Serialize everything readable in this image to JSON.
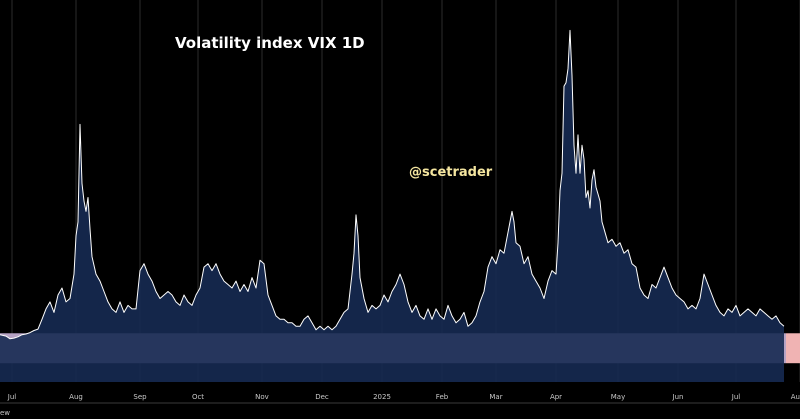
{
  "chart_data": {
    "type": "area",
    "title": "Volatility index VIX 1D",
    "watermark": "@scetrader",
    "corner_text": "ew",
    "ylim": [
      10,
      62
    ],
    "xlim": [
      0,
      393
    ],
    "grid": true,
    "colors": {
      "background": "#000000",
      "line": "#ffffff",
      "fill": "#162a52",
      "band": "#b6a3c4",
      "band_edge": "#f0b3b3",
      "grid": "#2c2c2c"
    },
    "band": {
      "y_from": 12.7,
      "y_to": 17.0,
      "label": ""
    },
    "x_ticks": [
      {
        "x": 6,
        "label": "Jul"
      },
      {
        "x": 38,
        "label": "Aug"
      },
      {
        "x": 70,
        "label": "Sep"
      },
      {
        "x": 99,
        "label": "Oct"
      },
      {
        "x": 131,
        "label": "Nov"
      },
      {
        "x": 161,
        "label": "Dec"
      },
      {
        "x": 191,
        "label": "2025"
      },
      {
        "x": 221,
        "label": "Feb"
      },
      {
        "x": 248,
        "label": "Mar"
      },
      {
        "x": 278,
        "label": "Apr"
      },
      {
        "x": 309,
        "label": "May"
      },
      {
        "x": 339,
        "label": "Jun"
      },
      {
        "x": 368,
        "label": "Jul"
      },
      {
        "x": 400,
        "label": "Au"
      }
    ],
    "series": [
      {
        "name": "",
        "points": [
          [
            0,
            16.8
          ],
          [
            3,
            16.6
          ],
          [
            5,
            16.2
          ],
          [
            7,
            16.3
          ],
          [
            9,
            16.5
          ],
          [
            11,
            16.8
          ],
          [
            13,
            16.9
          ],
          [
            15,
            17.1
          ],
          [
            17,
            17.4
          ],
          [
            19,
            17.6
          ],
          [
            21,
            19.0
          ],
          [
            23,
            20.5
          ],
          [
            25,
            21.5
          ],
          [
            27,
            20.0
          ],
          [
            29,
            22.5
          ],
          [
            31,
            23.5
          ],
          [
            33,
            21.5
          ],
          [
            35,
            22.0
          ],
          [
            37,
            25.5
          ],
          [
            38,
            31.0
          ],
          [
            39,
            33.0
          ],
          [
            40,
            47.0
          ],
          [
            41,
            38.5
          ],
          [
            42,
            36.0
          ],
          [
            43,
            34.5
          ],
          [
            44,
            36.5
          ],
          [
            45,
            32.0
          ],
          [
            46,
            28.0
          ],
          [
            48,
            25.5
          ],
          [
            50,
            24.5
          ],
          [
            52,
            23.0
          ],
          [
            54,
            21.5
          ],
          [
            56,
            20.5
          ],
          [
            58,
            20.0
          ],
          [
            60,
            21.5
          ],
          [
            62,
            20.0
          ],
          [
            64,
            21.0
          ],
          [
            66,
            20.5
          ],
          [
            68,
            20.5
          ],
          [
            70,
            26.0
          ],
          [
            72,
            27.0
          ],
          [
            74,
            25.5
          ],
          [
            76,
            24.5
          ],
          [
            78,
            23.0
          ],
          [
            80,
            22.0
          ],
          [
            82,
            22.5
          ],
          [
            84,
            23.0
          ],
          [
            86,
            22.5
          ],
          [
            88,
            21.5
          ],
          [
            90,
            21.0
          ],
          [
            92,
            22.5
          ],
          [
            94,
            21.5
          ],
          [
            96,
            21.0
          ],
          [
            98,
            22.5
          ],
          [
            100,
            23.5
          ],
          [
            102,
            26.5
          ],
          [
            104,
            27.0
          ],
          [
            106,
            26.0
          ],
          [
            108,
            27.0
          ],
          [
            110,
            25.5
          ],
          [
            112,
            24.5
          ],
          [
            114,
            24.0
          ],
          [
            116,
            23.5
          ],
          [
            118,
            24.5
          ],
          [
            120,
            23.0
          ],
          [
            122,
            24.0
          ],
          [
            124,
            23.0
          ],
          [
            126,
            25.0
          ],
          [
            128,
            23.5
          ],
          [
            130,
            27.5
          ],
          [
            132,
            27.0
          ],
          [
            134,
            22.5
          ],
          [
            136,
            21.0
          ],
          [
            138,
            19.5
          ],
          [
            140,
            19.0
          ],
          [
            142,
            19.0
          ],
          [
            144,
            18.5
          ],
          [
            146,
            18.5
          ],
          [
            148,
            18.0
          ],
          [
            150,
            18.0
          ],
          [
            152,
            19.0
          ],
          [
            154,
            19.5
          ],
          [
            156,
            18.5
          ],
          [
            158,
            17.5
          ],
          [
            160,
            18.0
          ],
          [
            162,
            17.5
          ],
          [
            164,
            18.0
          ],
          [
            166,
            17.5
          ],
          [
            168,
            18.0
          ],
          [
            170,
            19.0
          ],
          [
            172,
            20.0
          ],
          [
            174,
            20.5
          ],
          [
            176,
            25.5
          ],
          [
            177,
            28.5
          ],
          [
            178,
            34.0
          ],
          [
            179,
            31.0
          ],
          [
            180,
            25.0
          ],
          [
            182,
            22.0
          ],
          [
            184,
            20.0
          ],
          [
            186,
            21.0
          ],
          [
            188,
            20.5
          ],
          [
            190,
            21.0
          ],
          [
            192,
            22.5
          ],
          [
            194,
            21.5
          ],
          [
            196,
            23.0
          ],
          [
            198,
            24.0
          ],
          [
            200,
            25.5
          ],
          [
            202,
            24.0
          ],
          [
            204,
            21.5
          ],
          [
            206,
            20.0
          ],
          [
            208,
            21.0
          ],
          [
            210,
            19.5
          ],
          [
            212,
            19.0
          ],
          [
            214,
            20.5
          ],
          [
            216,
            19.0
          ],
          [
            218,
            20.5
          ],
          [
            220,
            19.5
          ],
          [
            222,
            19.0
          ],
          [
            224,
            21.0
          ],
          [
            226,
            19.5
          ],
          [
            228,
            18.5
          ],
          [
            230,
            19.0
          ],
          [
            232,
            20.0
          ],
          [
            234,
            18.0
          ],
          [
            236,
            18.5
          ],
          [
            238,
            19.5
          ],
          [
            240,
            21.5
          ],
          [
            242,
            23.0
          ],
          [
            244,
            26.5
          ],
          [
            246,
            28.0
          ],
          [
            248,
            27.0
          ],
          [
            250,
            29.0
          ],
          [
            252,
            28.5
          ],
          [
            254,
            31.5
          ],
          [
            256,
            34.5
          ],
          [
            257,
            33.0
          ],
          [
            258,
            30.0
          ],
          [
            260,
            29.5
          ],
          [
            262,
            27.0
          ],
          [
            264,
            28.0
          ],
          [
            266,
            25.5
          ],
          [
            268,
            24.5
          ],
          [
            270,
            23.5
          ],
          [
            272,
            22.0
          ],
          [
            274,
            24.5
          ],
          [
            276,
            26.0
          ],
          [
            278,
            25.5
          ],
          [
            279,
            30.0
          ],
          [
            280,
            37.5
          ],
          [
            281,
            40.0
          ],
          [
            282,
            52.5
          ],
          [
            283,
            53.0
          ],
          [
            284,
            55.0
          ],
          [
            285,
            60.5
          ],
          [
            286,
            54.0
          ],
          [
            287,
            44.0
          ],
          [
            288,
            40.0
          ],
          [
            289,
            45.5
          ],
          [
            290,
            40.0
          ],
          [
            291,
            44.0
          ],
          [
            292,
            42.0
          ],
          [
            293,
            36.5
          ],
          [
            294,
            37.5
          ],
          [
            295,
            35.0
          ],
          [
            296,
            39.0
          ],
          [
            297,
            40.5
          ],
          [
            298,
            38.0
          ],
          [
            299,
            37.0
          ],
          [
            300,
            36.0
          ],
          [
            301,
            33.0
          ],
          [
            302,
            32.0
          ],
          [
            304,
            30.0
          ],
          [
            306,
            30.5
          ],
          [
            308,
            29.5
          ],
          [
            310,
            30.0
          ],
          [
            312,
            28.5
          ],
          [
            314,
            29.0
          ],
          [
            316,
            27.0
          ],
          [
            318,
            26.5
          ],
          [
            320,
            23.5
          ],
          [
            322,
            22.5
          ],
          [
            324,
            22.0
          ],
          [
            326,
            24.0
          ],
          [
            328,
            23.5
          ],
          [
            330,
            25.0
          ],
          [
            332,
            26.5
          ],
          [
            334,
            25.0
          ],
          [
            336,
            23.5
          ],
          [
            338,
            22.5
          ],
          [
            340,
            22.0
          ],
          [
            342,
            21.5
          ],
          [
            344,
            20.5
          ],
          [
            346,
            21.0
          ],
          [
            348,
            20.5
          ],
          [
            350,
            22.0
          ],
          [
            352,
            25.5
          ],
          [
            354,
            24.0
          ],
          [
            356,
            22.5
          ],
          [
            358,
            21.0
          ],
          [
            360,
            20.0
          ],
          [
            362,
            19.5
          ],
          [
            364,
            20.5
          ],
          [
            366,
            20.0
          ],
          [
            368,
            21.0
          ],
          [
            370,
            19.5
          ],
          [
            372,
            20.0
          ],
          [
            374,
            20.5
          ],
          [
            376,
            20.0
          ],
          [
            378,
            19.5
          ],
          [
            380,
            20.5
          ],
          [
            382,
            20.0
          ],
          [
            384,
            19.5
          ],
          [
            386,
            19.0
          ],
          [
            388,
            19.5
          ],
          [
            390,
            18.5
          ],
          [
            392,
            18.0
          ]
        ]
      }
    ]
  }
}
